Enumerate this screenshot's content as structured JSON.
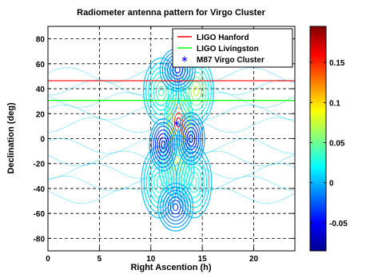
{
  "chart_data": {
    "type": "heatmap",
    "title": "Radiometer antenna pattern for Virgo Cluster",
    "xlabel": "Right Ascention (h)",
    "ylabel": "Declination (deg)",
    "xlim": [
      0,
      24
    ],
    "ylim": [
      -90,
      90
    ],
    "xticks": [
      0,
      5,
      10,
      15,
      20
    ],
    "yticks": [
      -80,
      -60,
      -40,
      -20,
      0,
      20,
      40,
      60,
      80
    ],
    "grid": true,
    "colormap": "jet",
    "colorbar": {
      "range": [
        -0.085,
        0.195
      ],
      "ticks": [
        -0.05,
        0,
        0.05,
        0.1,
        0.15
      ],
      "tick_labels": [
        "-0.05",
        "0",
        "0.05",
        "0.1",
        "0.15"
      ]
    },
    "legend_position": "top-right",
    "series": [
      {
        "name": "LIGO Hanford",
        "type": "hline",
        "y": 46.4,
        "color": "#ff0000"
      },
      {
        "name": "LIGO Livingston",
        "type": "hline",
        "y": 30.6,
        "color": "#00ff00"
      },
      {
        "name": "M87 Virgo Cluster",
        "type": "point",
        "x": 12.5,
        "y": 12.4,
        "color": "#0000ff",
        "marker": "asterisk"
      }
    ],
    "contour_lobes": [
      {
        "x": 12.7,
        "y": 13,
        "value": 0.19,
        "sx": 0.75,
        "sy": 14
      },
      {
        "x": 12.5,
        "y": -22,
        "value": 0.09,
        "sx": 0.9,
        "sy": 13
      },
      {
        "x": 14.4,
        "y": 38,
        "value": 0.08,
        "sx": 0.9,
        "sy": 14
      },
      {
        "x": 11.0,
        "y": 38,
        "value": 0.05,
        "sx": 0.9,
        "sy": 14
      },
      {
        "x": 10.8,
        "y": -35,
        "value": 0.04,
        "sx": 0.9,
        "sy": 15
      },
      {
        "x": 14.2,
        "y": -35,
        "value": 0.04,
        "sx": 0.9,
        "sy": 15
      },
      {
        "x": 11.2,
        "y": -5,
        "value": -0.08,
        "sx": 0.7,
        "sy": 11
      },
      {
        "x": 13.9,
        "y": 0,
        "value": -0.07,
        "sx": 0.7,
        "sy": 11
      },
      {
        "x": 12.6,
        "y": 55,
        "value": -0.05,
        "sx": 0.9,
        "sy": 9
      },
      {
        "x": 12.4,
        "y": -55,
        "value": -0.04,
        "sx": 0.9,
        "sy": 10
      }
    ]
  }
}
